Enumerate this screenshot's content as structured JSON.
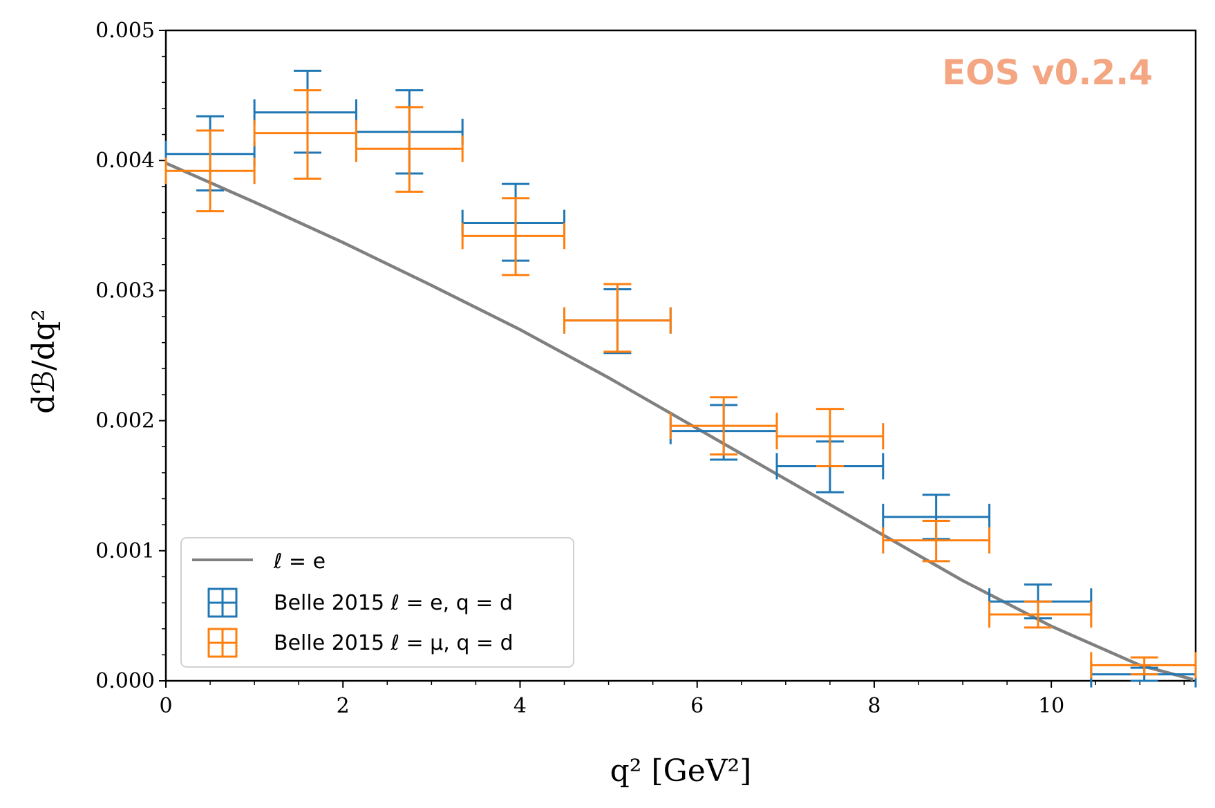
{
  "chart_data": {
    "type": "scatter",
    "xlabel": "q² [GeV²]",
    "ylabel": "dℬ/dq²",
    "xlim": [
      0,
      11.63
    ],
    "ylim": [
      0,
      0.005
    ],
    "xticks": [
      0,
      2,
      4,
      6,
      8,
      10
    ],
    "yticks": [
      0.0,
      0.001,
      0.002,
      0.003,
      0.004,
      0.005
    ],
    "xtick_labels": [
      "0",
      "2",
      "4",
      "6",
      "8",
      "10"
    ],
    "ytick_labels": [
      "0.000",
      "0.001",
      "0.002",
      "0.003",
      "0.004",
      "0.005"
    ],
    "grid": false,
    "legend_position": "lower-left",
    "watermark": "EOS v0.2.4",
    "watermark_color": "#f4a582",
    "theory_curve": {
      "label": "ℓ = e",
      "color": "#808080",
      "x": [
        0,
        1,
        2,
        3,
        4,
        5,
        6,
        7,
        8,
        9,
        10,
        11,
        11.6
      ],
      "y": [
        0.00398,
        0.00368,
        0.00337,
        0.00304,
        0.0027,
        0.00233,
        0.00194,
        0.00155,
        0.00116,
        0.00077,
        0.00042,
        0.00012,
        1e-05
      ]
    },
    "series": [
      {
        "name": "Belle 2015 ℓ = e, q = d",
        "color": "#1f77b4",
        "x": [
          0.5,
          1.6,
          2.75,
          3.95,
          5.1,
          6.3,
          7.5,
          8.7,
          9.85,
          11.05
        ],
        "xerr": [
          [
            0.0,
            1.0
          ],
          [
            1.0,
            2.15
          ],
          [
            2.15,
            3.35
          ],
          [
            3.35,
            4.5
          ],
          [
            4.5,
            5.7
          ],
          [
            5.7,
            6.9
          ],
          [
            6.9,
            8.1
          ],
          [
            8.1,
            9.3
          ],
          [
            9.3,
            10.45
          ],
          [
            10.45,
            11.63
          ]
        ],
        "y": [
          0.00405,
          0.00437,
          0.00422,
          0.00352,
          0.00277,
          0.00192,
          0.00165,
          0.00126,
          0.00061,
          5e-05
        ],
        "yerr_low": [
          0.00377,
          0.00406,
          0.0039,
          0.00323,
          0.00252,
          0.0017,
          0.00145,
          0.00109,
          0.00048,
          0.0
        ],
        "yerr_high": [
          0.00434,
          0.00469,
          0.00454,
          0.00382,
          0.00301,
          0.00212,
          0.00184,
          0.00143,
          0.00074,
          0.0001
        ]
      },
      {
        "name": "Belle 2015 ℓ = μ, q = d",
        "color": "#ff7f0e",
        "x": [
          0.5,
          1.6,
          2.75,
          3.95,
          5.1,
          6.3,
          7.5,
          8.7,
          9.85,
          11.05
        ],
        "xerr": [
          [
            0.0,
            1.0
          ],
          [
            1.0,
            2.15
          ],
          [
            2.15,
            3.35
          ],
          [
            3.35,
            4.5
          ],
          [
            4.5,
            5.7
          ],
          [
            5.7,
            6.9
          ],
          [
            6.9,
            8.1
          ],
          [
            8.1,
            9.3
          ],
          [
            9.3,
            10.45
          ],
          [
            10.45,
            11.63
          ]
        ],
        "y": [
          0.00392,
          0.00421,
          0.00409,
          0.00342,
          0.00277,
          0.00196,
          0.00188,
          0.00108,
          0.00051,
          0.00012
        ],
        "yerr_low": [
          0.00361,
          0.00386,
          0.00376,
          0.00312,
          0.00253,
          0.00174,
          0.00165,
          0.00092,
          0.00041,
          5e-05
        ],
        "yerr_high": [
          0.00423,
          0.00454,
          0.00441,
          0.00371,
          0.00305,
          0.00218,
          0.00209,
          0.00123,
          0.00061,
          0.00018
        ]
      }
    ]
  }
}
